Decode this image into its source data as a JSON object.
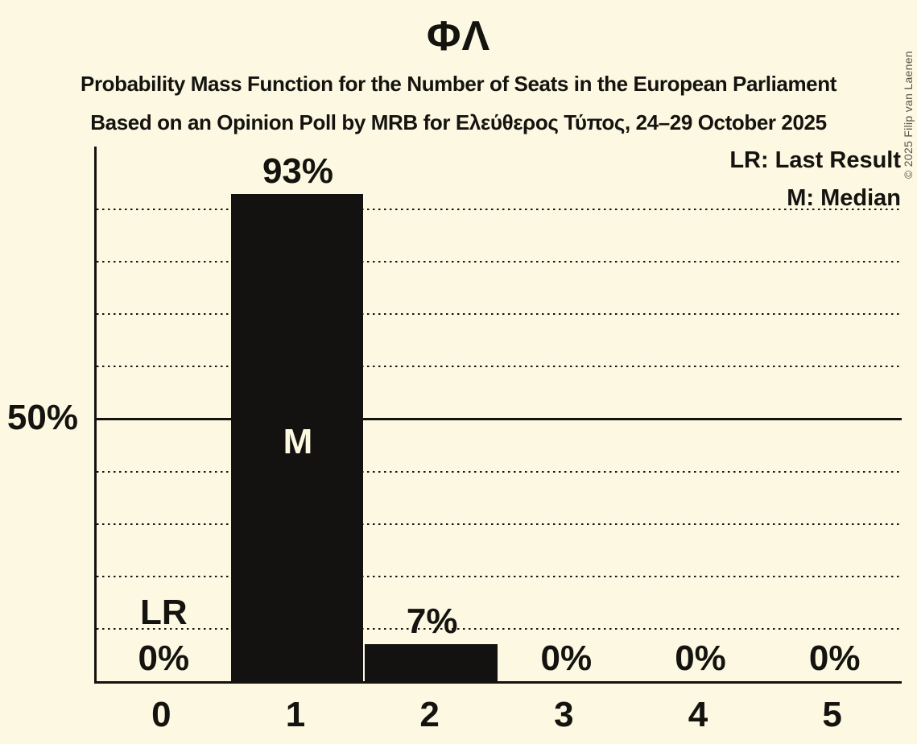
{
  "header": {
    "title": "ΦΛ",
    "subtitle1": "Probability Mass Function for the Number of Seats in the European Parliament",
    "subtitle2": "Based on an Opinion Poll by MRB for Ελεύθερος Τύπος, 24–29 October 2025"
  },
  "copyright": "© 2025 Filip van Laenen",
  "legend": {
    "lr": "LR: Last Result",
    "m": "M: Median"
  },
  "chart_data": {
    "type": "bar",
    "title": "ΦΛ",
    "subtitle": "Probability Mass Function for the Number of Seats in the European Parliament",
    "source_line": "Based on an Opinion Poll by MRB for Ελεύθερος Τύπος, 24–29 October 2025",
    "categories": [
      "0",
      "1",
      "2",
      "3",
      "4",
      "5"
    ],
    "values": [
      0,
      93,
      7,
      0,
      0,
      0
    ],
    "bar_labels": [
      "0%",
      "93%",
      "7%",
      "0%",
      "0%",
      "0%"
    ],
    "xlabel": "",
    "ylabel": "",
    "ylim": [
      0,
      100
    ],
    "y_tick": {
      "value": 50,
      "label": "50%"
    },
    "dotted_gridlines": [
      10,
      20,
      30,
      40,
      60,
      70,
      80,
      90
    ],
    "solid_gridline": 50,
    "grid": "horizontal dotted every 10%, solid at 50%",
    "legend_position": "top-right",
    "median": {
      "category": "1",
      "marker": "M"
    },
    "last_result": {
      "category": "0",
      "marker": "LR"
    },
    "legend_entries": [
      "LR: Last Result",
      "M: Median"
    ],
    "colors": {
      "background": "#fcf8e1",
      "bar": "#131210",
      "text": "#14130f",
      "median_marker_text": "#fcf8e1",
      "copyright_text": "#57534b"
    }
  }
}
